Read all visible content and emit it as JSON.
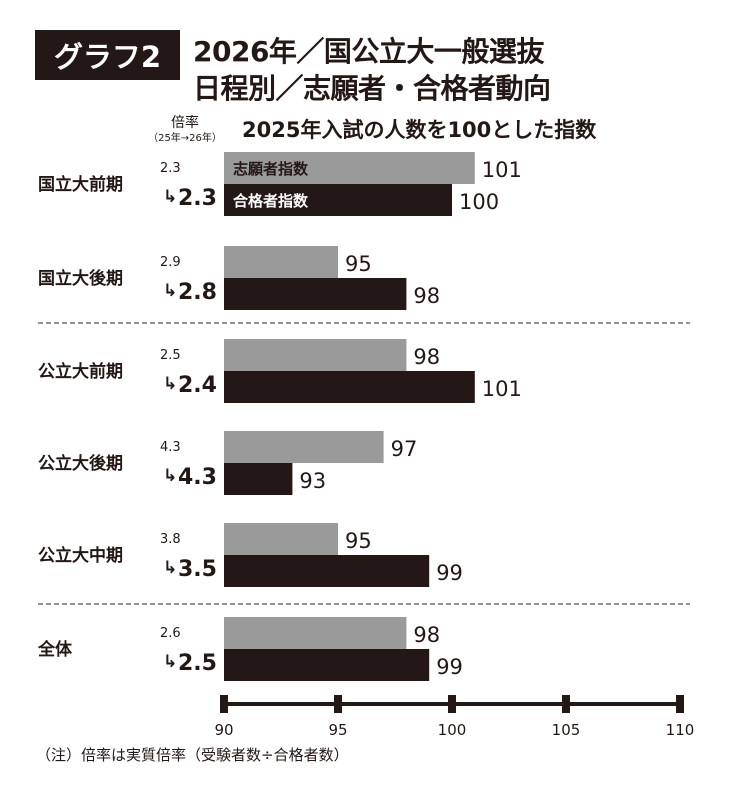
{
  "badge": "グラフ2",
  "title_lines": [
    "2026年／国公立大一般選抜",
    "日程別／志願者・合格者動向"
  ],
  "ratio_header": {
    "label": "倍率",
    "sublabel": "（25年→26年）"
  },
  "note": "（注）倍率は実質倍率（受験者数÷合格者数）",
  "colors": {
    "applicants": "#9a9a9a",
    "passers": "#231815",
    "divider": "#555555"
  },
  "chart_data": {
    "type": "bar",
    "orientation": "horizontal",
    "title": "2025年入試の人数を100とした指数",
    "categories": [
      "国立大前期",
      "国立大後期",
      "公立大前期",
      "公立大後期",
      "公立大中期",
      "全体"
    ],
    "series": [
      {
        "name": "志願者指数",
        "values": [
          101,
          95,
          98,
          97,
          95,
          98
        ]
      },
      {
        "name": "合格者指数",
        "values": [
          100,
          98,
          101,
          93,
          99,
          99
        ]
      }
    ],
    "ratio_2025": [
      "2.3",
      "2.9",
      "2.5",
      "4.3",
      "3.8",
      "2.6"
    ],
    "ratio_2026": [
      "2.3",
      "2.8",
      "2.4",
      "4.3",
      "3.5",
      "2.5"
    ],
    "xlim": [
      90,
      110
    ],
    "xticks": [
      90,
      95,
      100,
      105,
      110
    ],
    "legend_placement": "inside first bars",
    "group_dividers_after": [
      "国立大後期",
      "公立大中期"
    ]
  }
}
